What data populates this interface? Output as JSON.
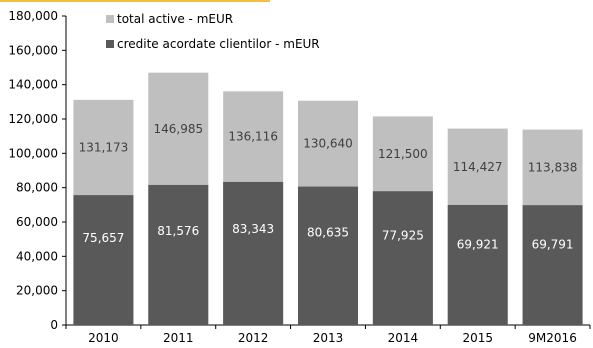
{
  "chart_data": {
    "type": "bar",
    "categories": [
      "2010",
      "2011",
      "2012",
      "2013",
      "2014",
      "2015",
      "9M2016"
    ],
    "series": [
      {
        "name": "total active - mEUR",
        "values": [
          131173,
          146985,
          136116,
          130640,
          121500,
          114427,
          113838
        ],
        "labels": [
          "131,173",
          "146,985",
          "136,116",
          "130,640",
          "121,500",
          "114,427",
          "113,838"
        ],
        "color": "#bfbfbf",
        "label_color": "#404040"
      },
      {
        "name": "credite acordate clientilor - mEUR",
        "values": [
          75657,
          81576,
          83343,
          80635,
          77925,
          69921,
          69791
        ],
        "labels": [
          "75,657",
          "81,576",
          "83,343",
          "80,635",
          "77,925",
          "69,921",
          "69,791"
        ],
        "color": "#595959",
        "label_color": "#ffffff"
      }
    ],
    "yticks": [
      "0",
      "20,000",
      "40,000",
      "60,000",
      "80,000",
      "100,000",
      "120,000",
      "140,000",
      "160,000",
      "180,000"
    ],
    "ylim": [
      0,
      180000
    ],
    "ystep": 20000,
    "title": "",
    "xlabel": "",
    "ylabel": "",
    "grid": false,
    "legend_position": "top-left",
    "accent_color": "#f0c040"
  }
}
